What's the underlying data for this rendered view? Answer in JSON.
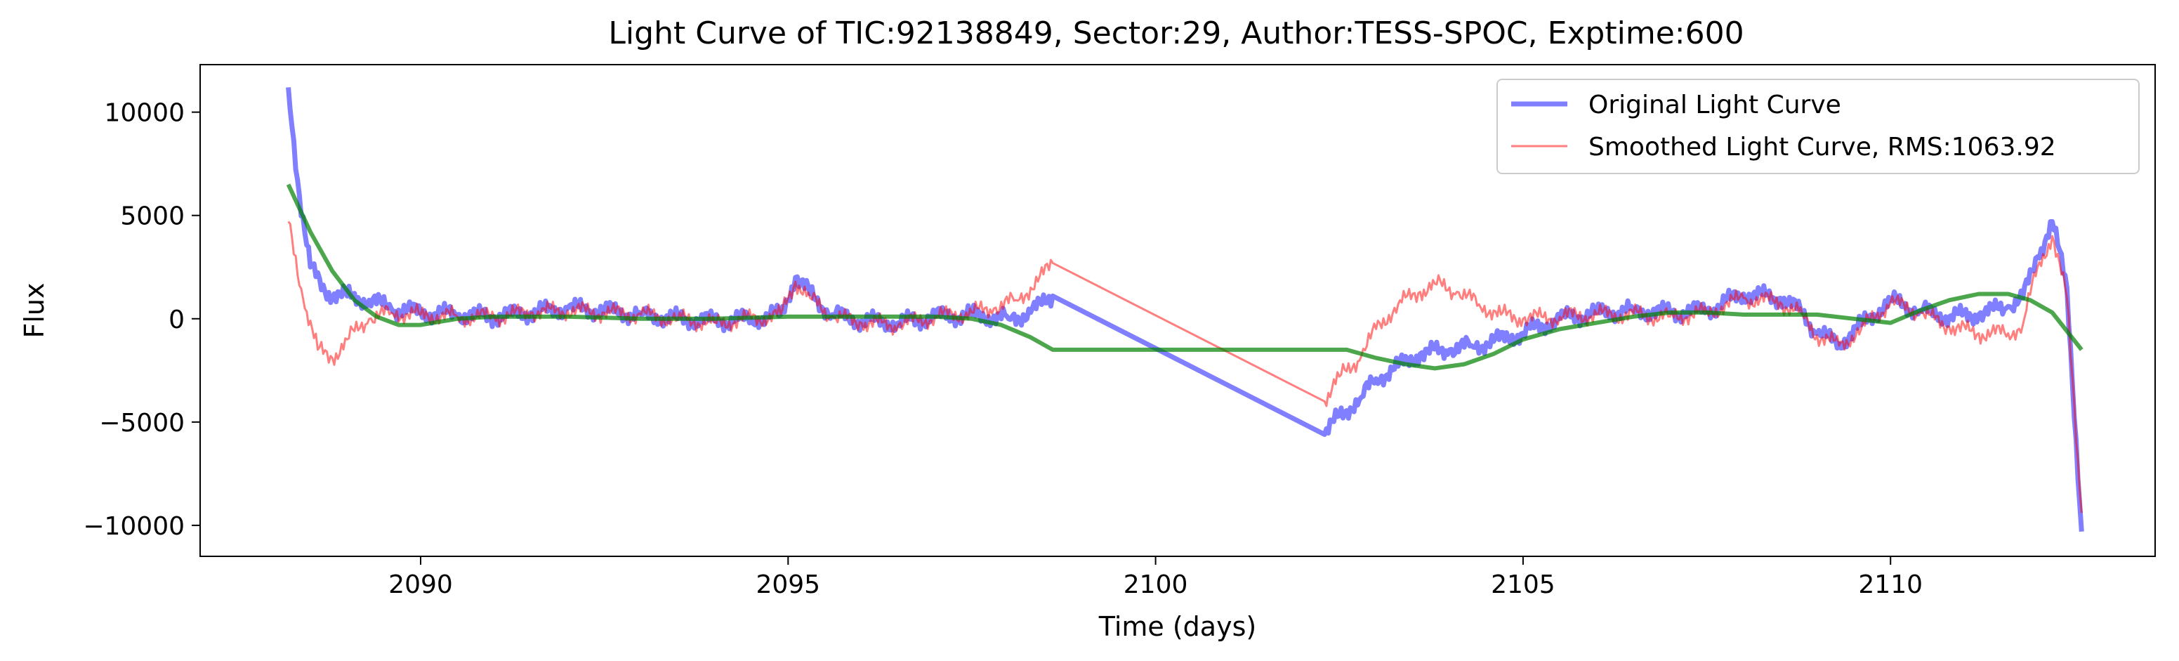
{
  "chart_data": {
    "type": "line",
    "title": "Light Curve of TIC:92138849, Sector:29, Author:TESS-SPOC, Exptime:600",
    "xlabel": "Time (days)",
    "ylabel": "Flux",
    "xlim": [
      2087.0,
      2113.6
    ],
    "ylim": [
      -11500,
      12300
    ],
    "xticks": [
      2090,
      2095,
      2100,
      2105,
      2110
    ],
    "yticks": [
      -10000,
      -5000,
      0,
      5000,
      10000
    ],
    "xtick_labels": [
      "2090",
      "2095",
      "2100",
      "2105",
      "2110"
    ],
    "ytick_labels": [
      "−10000",
      "−5000",
      "0",
      "5000",
      "10000"
    ],
    "grid": false,
    "legend_position": "top-right",
    "series": [
      {
        "name": "Original Light Curve",
        "color": "#0000ff",
        "x": [
          2088.2,
          2088.35,
          2088.5,
          2088.7,
          2089.0,
          2089.3,
          2089.6,
          2090.0,
          2090.5,
          2091.0,
          2091.5,
          2092.0,
          2092.5,
          2093.0,
          2093.5,
          2094.0,
          2094.5,
          2094.9,
          2095.1,
          2095.3,
          2095.6,
          2096.0,
          2096.5,
          2097.0,
          2097.5,
          2098.0,
          2098.3,
          2098.6,
          2102.3,
          2102.5,
          2102.8,
          2103.0,
          2103.3,
          2103.6,
          2104.0,
          2104.3,
          2104.6,
          2105.0,
          2105.5,
          2106.0,
          2106.5,
          2107.0,
          2107.5,
          2108.0,
          2108.5,
          2108.8,
          2109.0,
          2109.3,
          2109.6,
          2110.0,
          2110.4,
          2110.8,
          2111.2,
          2111.6,
          2111.8,
          2112.0,
          2112.2,
          2112.4,
          2112.6
        ],
        "values": [
          11200,
          6000,
          2500,
          1300,
          1100,
          900,
          500,
          300,
          200,
          100,
          300,
          500,
          400,
          200,
          0,
          -100,
          0,
          200,
          2000,
          1200,
          200,
          -100,
          -200,
          100,
          200,
          0,
          300,
          1100,
          -5600,
          -4700,
          -3800,
          -2900,
          -2300,
          -1700,
          -1500,
          -1300,
          -1100,
          -700,
          0,
          300,
          400,
          300,
          400,
          1200,
          1000,
          300,
          -700,
          -1200,
          -300,
          900,
          400,
          100,
          200,
          600,
          1000,
          3000,
          4700,
          1500,
          -10300
        ]
      },
      {
        "name": "Smoothed Light Curve, RMS:1063.92",
        "color": "#ff0000",
        "x": [
          2088.2,
          2088.4,
          2088.6,
          2088.8,
          2089.0,
          2089.3,
          2089.6,
          2090.0,
          2090.5,
          2091.0,
          2091.5,
          2092.0,
          2092.5,
          2093.0,
          2093.5,
          2094.0,
          2094.5,
          2094.9,
          2095.1,
          2095.3,
          2095.6,
          2096.0,
          2096.5,
          2097.0,
          2097.5,
          2097.8,
          2098.1,
          2098.4,
          2098.6,
          2102.3,
          2102.5,
          2102.8,
          2103.0,
          2103.3,
          2103.6,
          2103.8,
          2104.1,
          2104.4,
          2104.7,
          2105.0,
          2105.5,
          2106.0,
          2106.5,
          2107.0,
          2107.5,
          2108.0,
          2108.5,
          2108.8,
          2109.0,
          2109.3,
          2109.6,
          2110.0,
          2110.4,
          2110.8,
          2111.2,
          2111.6,
          2111.8,
          2112.0,
          2112.2,
          2112.4,
          2112.6
        ],
        "values": [
          4700,
          1000,
          -1500,
          -1900,
          -1000,
          0,
          300,
          200,
          100,
          100,
          300,
          400,
          300,
          200,
          0,
          -200,
          0,
          200,
          1800,
          1000,
          100,
          -200,
          -300,
          100,
          300,
          500,
          900,
          1800,
          2700,
          -4000,
          -2800,
          -1800,
          -500,
          700,
          1300,
          1700,
          1300,
          700,
          200,
          0,
          100,
          200,
          200,
          100,
          300,
          1000,
          800,
          200,
          -800,
          -1300,
          -500,
          800,
          300,
          -400,
          -700,
          -700,
          -300,
          2500,
          4000,
          1000,
          -9400
        ]
      },
      {
        "name": "",
        "color": "#008000",
        "x": [
          2088.2,
          2088.5,
          2088.8,
          2089.1,
          2089.4,
          2089.7,
          2090.0,
          2090.5,
          2091.0,
          2092.0,
          2093.0,
          2094.0,
          2095.0,
          2096.0,
          2097.0,
          2097.5,
          2097.9,
          2098.3,
          2098.6,
          2099.0,
          2100.0,
          2101.0,
          2102.0,
          2102.6,
          2103.0,
          2103.4,
          2103.8,
          2104.2,
          2104.6,
          2105.0,
          2105.5,
          2106.0,
          2106.5,
          2107.0,
          2107.5,
          2108.0,
          2108.5,
          2109.0,
          2109.5,
          2110.0,
          2110.4,
          2110.8,
          2111.2,
          2111.6,
          2111.9,
          2112.2,
          2112.6
        ],
        "values": [
          6500,
          4200,
          2300,
          900,
          100,
          -300,
          -300,
          0,
          100,
          100,
          0,
          0,
          100,
          100,
          100,
          0,
          -300,
          -900,
          -1500,
          -1500,
          -1500,
          -1500,
          -1500,
          -1500,
          -1900,
          -2200,
          -2400,
          -2200,
          -1700,
          -1000,
          -500,
          -200,
          100,
          300,
          300,
          200,
          200,
          200,
          0,
          -200,
          400,
          900,
          1200,
          1200,
          900,
          300,
          -1500
        ]
      }
    ]
  }
}
